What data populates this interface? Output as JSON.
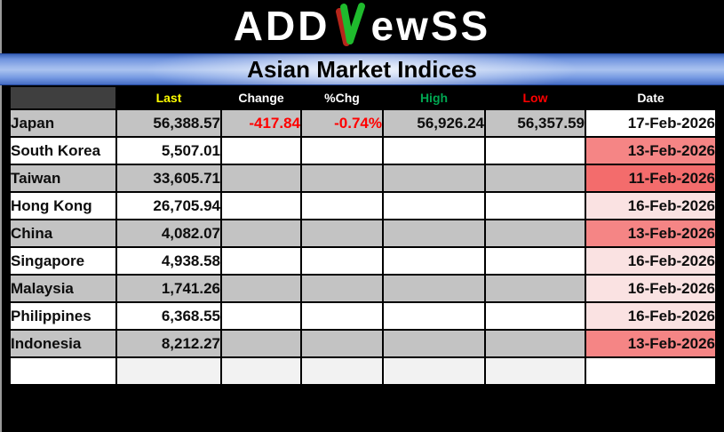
{
  "logo": {
    "prefix": "ADD",
    "suffix": "ewSS",
    "n_icon": "green-red-candlestick-n",
    "green": "#1fbb2d",
    "red": "#b6261b"
  },
  "title": "Asian Market Indices",
  "colors": {
    "background": "#000000",
    "titlebar_blue": "#6f93de",
    "header_bg": "#000000",
    "header_corner_bg": "#3f3f3f",
    "last_header": "#ffff00",
    "high_header": "#00a651",
    "low_header": "#ff0000",
    "negative": "#ff0000",
    "row_gray": "#c3c3c3",
    "row_white": "#ffffff",
    "empty_row_gray": "#f2f2f2",
    "date_fresh_white": "#ffffff",
    "date_stale_light": "#fae2e2",
    "date_stale_medium": "#f58585",
    "date_stale_strong": "#f36c6c"
  },
  "table": {
    "headers": [
      {
        "key": "country",
        "label": "",
        "color": "#ffffff",
        "bg": "#3f3f3f"
      },
      {
        "key": "last",
        "label": "Last",
        "color": "#ffff00"
      },
      {
        "key": "change",
        "label": "Change",
        "color": "#ffffff"
      },
      {
        "key": "pct",
        "label": "%Chg",
        "color": "#ffffff"
      },
      {
        "key": "high",
        "label": "High",
        "color": "#00a651"
      },
      {
        "key": "low",
        "label": "Low",
        "color": "#ff0000"
      },
      {
        "key": "date",
        "label": "Date",
        "color": "#ffffff"
      }
    ],
    "rows": [
      {
        "country": "Japan",
        "last": "56,388.57",
        "change": "-417.84",
        "pct": "-0.74%",
        "high": "56,926.24",
        "low": "56,357.59",
        "date": "17-Feb-2026",
        "bg": "#c3c3c3",
        "date_bg": "#ffffff",
        "neg": true
      },
      {
        "country": "South Korea",
        "last": "5,507.01",
        "change": "",
        "pct": "",
        "high": "",
        "low": "",
        "date": "13-Feb-2026",
        "bg": "#ffffff",
        "date_bg": "#f58585",
        "neg": false
      },
      {
        "country": "Taiwan",
        "last": "33,605.71",
        "change": "",
        "pct": "",
        "high": "",
        "low": "",
        "date": "11-Feb-2026",
        "bg": "#c3c3c3",
        "date_bg": "#f36c6c",
        "neg": false
      },
      {
        "country": "Hong Kong",
        "last": "26,705.94",
        "change": "",
        "pct": "",
        "high": "",
        "low": "",
        "date": "16-Feb-2026",
        "bg": "#ffffff",
        "date_bg": "#fae2e2",
        "neg": false
      },
      {
        "country": "China",
        "last": "4,082.07",
        "change": "",
        "pct": "",
        "high": "",
        "low": "",
        "date": "13-Feb-2026",
        "bg": "#c3c3c3",
        "date_bg": "#f58585",
        "neg": false
      },
      {
        "country": "Singapore",
        "last": "4,938.58",
        "change": "",
        "pct": "",
        "high": "",
        "low": "",
        "date": "16-Feb-2026",
        "bg": "#ffffff",
        "date_bg": "#fae2e2",
        "neg": false
      },
      {
        "country": "Malaysia",
        "last": "1,741.26",
        "change": "",
        "pct": "",
        "high": "",
        "low": "",
        "date": "16-Feb-2026",
        "bg": "#c3c3c3",
        "date_bg": "#fae2e2",
        "neg": false
      },
      {
        "country": "Philippines",
        "last": "6,368.55",
        "change": "",
        "pct": "",
        "high": "",
        "low": "",
        "date": "16-Feb-2026",
        "bg": "#ffffff",
        "date_bg": "#fae2e2",
        "neg": false
      },
      {
        "country": "Indonesia",
        "last": "8,212.27",
        "change": "",
        "pct": "",
        "high": "",
        "low": "",
        "date": "13-Feb-2026",
        "bg": "#c3c3c3",
        "date_bg": "#f58585",
        "neg": false
      },
      {
        "country": "",
        "last": "",
        "change": "",
        "pct": "",
        "high": "",
        "low": "",
        "date": "",
        "bg": "#f2f2f2",
        "country_bg": "#ffffff",
        "date_bg": "#ffffff",
        "neg": false
      }
    ]
  },
  "chart_data": {
    "type": "table",
    "title": "Asian Market Indices",
    "columns": [
      "",
      "Last",
      "Change",
      "%Chg",
      "High",
      "Low",
      "Date"
    ],
    "rows": [
      [
        "Japan",
        "56,388.57",
        "-417.84",
        "-0.74%",
        "56,926.24",
        "56,357.59",
        "17-Feb-2026"
      ],
      [
        "South Korea",
        "5,507.01",
        "",
        "",
        "",
        "",
        "13-Feb-2026"
      ],
      [
        "Taiwan",
        "33,605.71",
        "",
        "",
        "",
        "",
        "11-Feb-2026"
      ],
      [
        "Hong Kong",
        "26,705.94",
        "",
        "",
        "",
        "",
        "16-Feb-2026"
      ],
      [
        "China",
        "4,082.07",
        "",
        "",
        "",
        "",
        "13-Feb-2026"
      ],
      [
        "Singapore",
        "4,938.58",
        "",
        "",
        "",
        "",
        "16-Feb-2026"
      ],
      [
        "Malaysia",
        "1,741.26",
        "",
        "",
        "",
        "",
        "16-Feb-2026"
      ],
      [
        "Philippines",
        "6,368.55",
        "",
        "",
        "",
        "",
        "16-Feb-2026"
      ],
      [
        "Indonesia",
        "8,212.27",
        "",
        "",
        "",
        "",
        "13-Feb-2026"
      ]
    ]
  }
}
